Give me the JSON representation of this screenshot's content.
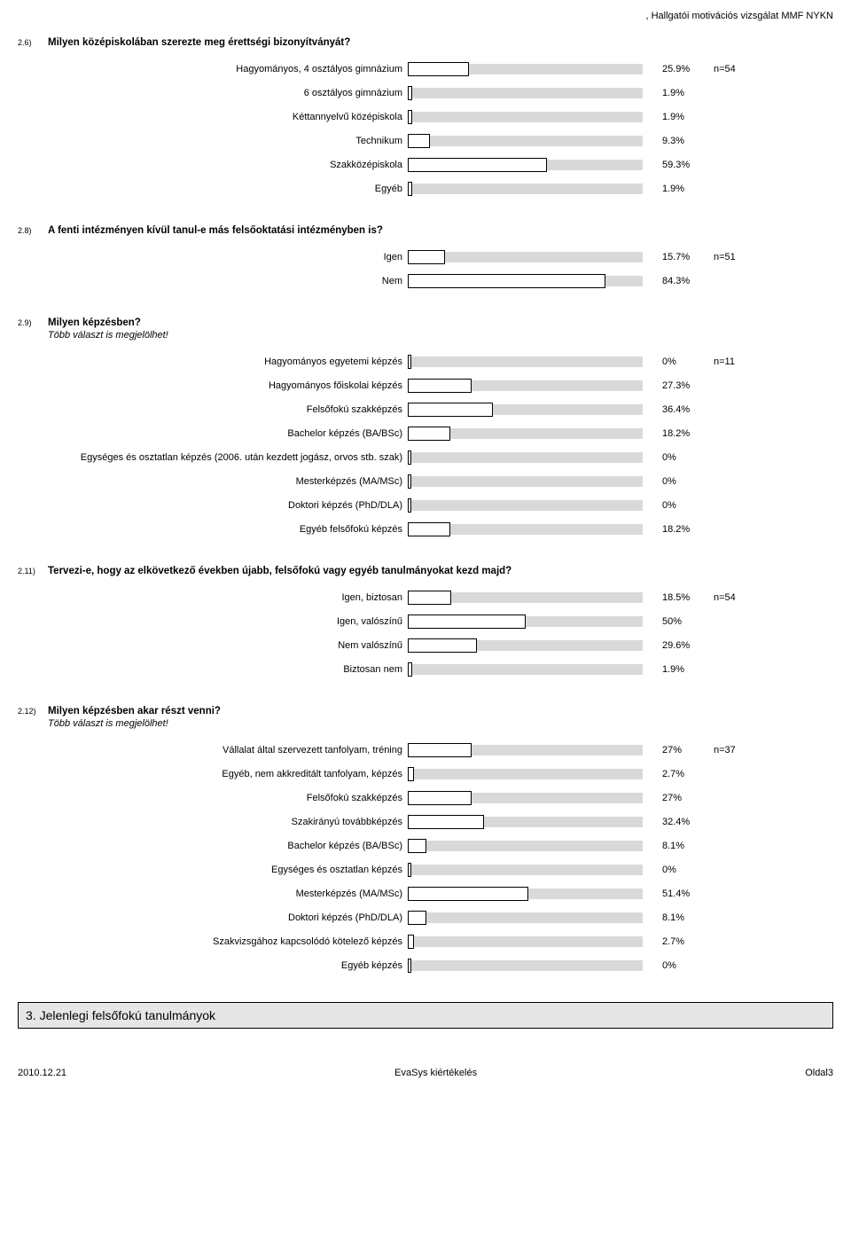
{
  "header": {
    "title": ", Hallgatói motivációs vizsgálat MMF NYKN"
  },
  "questions": [
    {
      "num": "2.6)",
      "title": "Milyen középiskolában szerezte meg érettségi bizonyítványát?",
      "label_width": 440,
      "rows": [
        {
          "label": "Hagyományos, 4 osztályos gimnázium",
          "pct": 25.9,
          "pct_label": "25.9%",
          "n": "n=54"
        },
        {
          "label": "6 osztályos gimnázium",
          "pct": 1.9,
          "pct_label": "1.9%"
        },
        {
          "label": "Kéttannyelvű középiskola",
          "pct": 1.9,
          "pct_label": "1.9%"
        },
        {
          "label": "Technikum",
          "pct": 9.3,
          "pct_label": "9.3%"
        },
        {
          "label": "Szakközépiskola",
          "pct": 59.3,
          "pct_label": "59.3%"
        },
        {
          "label": "Egyéb",
          "pct": 1.9,
          "pct_label": "1.9%"
        }
      ]
    },
    {
      "num": "2.8)",
      "title": "A fenti intézményen kívül tanul-e más felsőoktatási intézményben is?",
      "label_width": 440,
      "rows": [
        {
          "label": "Igen",
          "pct": 15.7,
          "pct_label": "15.7%",
          "n": "n=51"
        },
        {
          "label": "Nem",
          "pct": 84.3,
          "pct_label": "84.3%"
        }
      ]
    },
    {
      "num": "2.9)",
      "title": "Milyen képzésben?",
      "subtitle": "Több választ is megjelölhet!",
      "label_width": 440,
      "rows": [
        {
          "label": "Hagyományos egyetemi képzés",
          "pct": 0,
          "pct_label": "0%",
          "n": "n=11"
        },
        {
          "label": "Hagyományos főiskolai képzés",
          "pct": 27.3,
          "pct_label": "27.3%"
        },
        {
          "label": "Felsőfokú szakképzés",
          "pct": 36.4,
          "pct_label": "36.4%"
        },
        {
          "label": "Bachelor képzés (BA/BSc)",
          "pct": 18.2,
          "pct_label": "18.2%"
        },
        {
          "label": "Egységes és osztatlan képzés (2006. után kezdett jogász, orvos stb. szak)",
          "pct": 0,
          "pct_label": "0%"
        },
        {
          "label": "Mesterképzés (MA/MSc)",
          "pct": 0,
          "pct_label": "0%"
        },
        {
          "label": "Doktori képzés (PhD/DLA)",
          "pct": 0,
          "pct_label": "0%"
        },
        {
          "label": "Egyéb felsőfokú képzés",
          "pct": 18.2,
          "pct_label": "18.2%"
        }
      ]
    },
    {
      "num": "2.11)",
      "title": "Tervezi-e, hogy az elkövetkező években újabb, felsőfokú vagy egyéb tanulmányokat kezd majd?",
      "label_width": 440,
      "rows": [
        {
          "label": "Igen, biztosan",
          "pct": 18.5,
          "pct_label": "18.5%",
          "n": "n=54"
        },
        {
          "label": "Igen, valószínű",
          "pct": 50,
          "pct_label": "50%"
        },
        {
          "label": "Nem valószínű",
          "pct": 29.6,
          "pct_label": "29.6%"
        },
        {
          "label": "Biztosan nem",
          "pct": 1.9,
          "pct_label": "1.9%"
        }
      ]
    },
    {
      "num": "2.12)",
      "title": "Milyen képzésben akar részt venni?",
      "subtitle": "Több választ is megjelölhet!",
      "label_width": 440,
      "rows": [
        {
          "label": "Vállalat által szervezett tanfolyam, tréning",
          "pct": 27,
          "pct_label": "27%",
          "n": "n=37"
        },
        {
          "label": "Egyéb, nem akkreditált tanfolyam, képzés",
          "pct": 2.7,
          "pct_label": "2.7%"
        },
        {
          "label": "Felsőfokú szakképzés",
          "pct": 27,
          "pct_label": "27%"
        },
        {
          "label": "Szakirányú továbbképzés",
          "pct": 32.4,
          "pct_label": "32.4%"
        },
        {
          "label": "Bachelor képzés (BA/BSc)",
          "pct": 8.1,
          "pct_label": "8.1%"
        },
        {
          "label": "Egységes és osztatlan képzés",
          "pct": 0,
          "pct_label": "0%"
        },
        {
          "label": "Mesterképzés (MA/MSc)",
          "pct": 51.4,
          "pct_label": "51.4%"
        },
        {
          "label": "Doktori képzés (PhD/DLA)",
          "pct": 8.1,
          "pct_label": "8.1%"
        },
        {
          "label": "Szakvizsgához kapcsolódó kötelező képzés",
          "pct": 2.7,
          "pct_label": "2.7%"
        },
        {
          "label": "Egyéb képzés",
          "pct": 0,
          "pct_label": "0%"
        }
      ]
    }
  ],
  "section": {
    "title": "3. Jelenlegi felsőfokú tanulmányok"
  },
  "footer": {
    "left": "2010.12.21",
    "center": "EvaSys kiértékelés",
    "right": "Oldal3"
  },
  "style": {
    "bar_track_width": 265,
    "min_bar_width": 4,
    "track_bg": "#d9d9d9",
    "fill_bg": "#ffffff",
    "fill_border": "#000000"
  }
}
